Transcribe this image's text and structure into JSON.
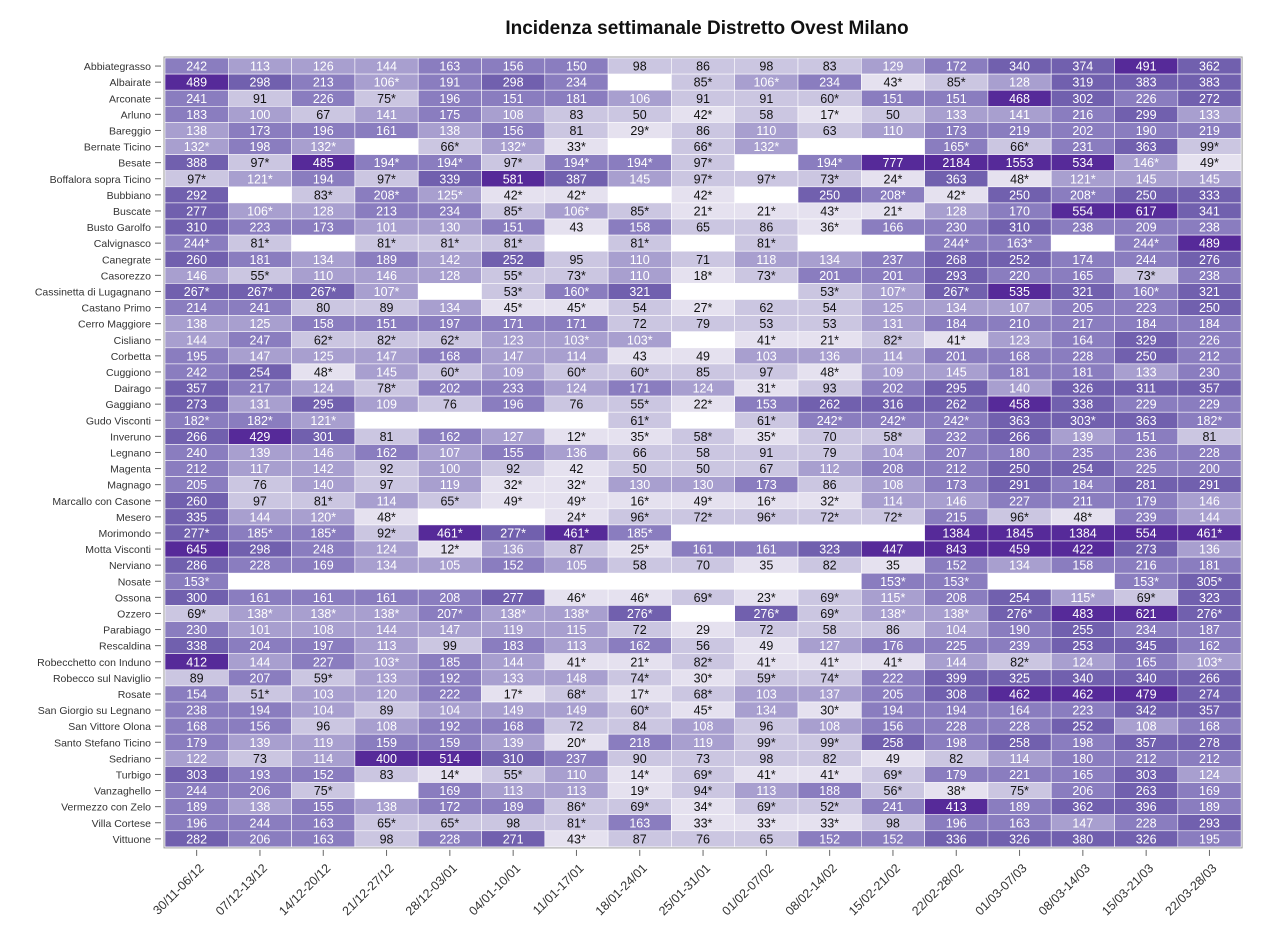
{
  "chart_data": {
    "type": "heatmap",
    "title": "Incidenza settimanale Distretto Ovest Milano",
    "columns": [
      "30/11-06/12",
      "07/12-13/12",
      "14/12-20/12",
      "21/12-27/12",
      "28/12-03/01",
      "04/01-10/01",
      "11/01-17/01",
      "18/01-24/01",
      "25/01-31/01",
      "01/02-07/02",
      "08/02-14/02",
      "15/02-21/02",
      "22/02-28/02",
      "01/03-07/03",
      "08/03-14/03",
      "15/03-21/03",
      "22/03-28/03"
    ],
    "rows": [
      "Abbiategrasso",
      "Albairate",
      "Arconate",
      "Arluno",
      "Bareggio",
      "Bernate Ticino",
      "Besate",
      "Boffalora sopra Ticino",
      "Bubbiano",
      "Buscate",
      "Busto Garolfo",
      "Calvignasco",
      "Canegrate",
      "Casorezzo",
      "Cassinetta di Lugagnano",
      "Castano Primo",
      "Cerro Maggiore",
      "Cisliano",
      "Corbetta",
      "Cuggiono",
      "Dairago",
      "Gaggiano",
      "Gudo Visconti",
      "Inveruno",
      "Legnano",
      "Magenta",
      "Magnago",
      "Marcallo con Casone",
      "Mesero",
      "Morimondo",
      "Motta Visconti",
      "Nerviano",
      "Nosate",
      "Ossona",
      "Ozzero",
      "Parabiago",
      "Rescaldina",
      "Robecchetto con Induno",
      "Robecco sul Naviglio",
      "Rosate",
      "San Giorgio su Legnano",
      "San Vittore Olona",
      "Santo Stefano Ticino",
      "Sedriano",
      "Turbigo",
      "Vanzaghello",
      "Vermezzo con Zelo",
      "Villa Cortese",
      "Vittuone"
    ],
    "values": [
      [
        "242",
        "113",
        "126",
        "144",
        "163",
        "156",
        "150",
        "98",
        "86",
        "98",
        "83",
        "129",
        "172",
        "340",
        "374",
        "491",
        "362"
      ],
      [
        "489",
        "298",
        "213",
        "106*",
        "191",
        "298",
        "234",
        "",
        "85*",
        "106*",
        "234",
        "43*",
        "85*",
        "128",
        "319",
        "383",
        "383"
      ],
      [
        "241",
        "91",
        "226",
        "75*",
        "196",
        "151",
        "181",
        "106",
        "91",
        "91",
        "60*",
        "151",
        "151",
        "468",
        "302",
        "226",
        "272"
      ],
      [
        "183",
        "100",
        "67",
        "141",
        "175",
        "108",
        "83",
        "50",
        "42*",
        "58",
        "17*",
        "50",
        "133",
        "141",
        "216",
        "299",
        "133"
      ],
      [
        "138",
        "173",
        "196",
        "161",
        "138",
        "156",
        "81",
        "29*",
        "86",
        "110",
        "63",
        "110",
        "173",
        "219",
        "202",
        "190",
        "219"
      ],
      [
        "132*",
        "198",
        "132*",
        "",
        "66*",
        "132*",
        "33*",
        "",
        "66*",
        "132*",
        "",
        "",
        "165*",
        "66*",
        "231",
        "363",
        "99*"
      ],
      [
        "388",
        "97*",
        "485",
        "194*",
        "194*",
        "97*",
        "194*",
        "194*",
        "97*",
        "",
        "194*",
        "777",
        "2184",
        "1553",
        "534",
        "146*",
        "49*"
      ],
      [
        "97*",
        "121*",
        "194",
        "97*",
        "339",
        "581",
        "387",
        "145",
        "97*",
        "97*",
        "73*",
        "24*",
        "363",
        "48*",
        "121*",
        "145",
        "145"
      ],
      [
        "292",
        "",
        "83*",
        "208*",
        "125*",
        "42*",
        "42*",
        "",
        "42*",
        "",
        "250",
        "208*",
        "42*",
        "250",
        "208*",
        "250",
        "333"
      ],
      [
        "277",
        "106*",
        "128",
        "213",
        "234",
        "85*",
        "106*",
        "85*",
        "21*",
        "21*",
        "43*",
        "21*",
        "128",
        "170",
        "554",
        "617",
        "341"
      ],
      [
        "310",
        "223",
        "173",
        "101",
        "130",
        "151",
        "43",
        "158",
        "65",
        "86",
        "36*",
        "166",
        "230",
        "310",
        "238",
        "209",
        "238"
      ],
      [
        "244*",
        "81*",
        "",
        "81*",
        "81*",
        "81*",
        "",
        "81*",
        "",
        "81*",
        "",
        "",
        "244*",
        "163*",
        "",
        "244*",
        "489"
      ],
      [
        "260",
        "181",
        "134",
        "189",
        "142",
        "252",
        "95",
        "110",
        "71",
        "118",
        "134",
        "237",
        "268",
        "252",
        "174",
        "244",
        "276"
      ],
      [
        "146",
        "55*",
        "110",
        "146",
        "128",
        "55*",
        "73*",
        "110",
        "18*",
        "73*",
        "201",
        "201",
        "293",
        "220",
        "165",
        "73*",
        "238"
      ],
      [
        "267*",
        "267*",
        "267*",
        "107*",
        "",
        "53*",
        "160*",
        "321",
        "",
        "",
        "53*",
        "107*",
        "267*",
        "535",
        "321",
        "160*",
        "321"
      ],
      [
        "214",
        "241",
        "80",
        "89",
        "134",
        "45*",
        "45*",
        "54",
        "27*",
        "62",
        "54",
        "125",
        "134",
        "107",
        "205",
        "223",
        "250"
      ],
      [
        "138",
        "125",
        "158",
        "151",
        "197",
        "171",
        "171",
        "72",
        "79",
        "53",
        "53",
        "131",
        "184",
        "210",
        "217",
        "184",
        "184"
      ],
      [
        "144",
        "247",
        "62*",
        "82*",
        "62*",
        "123",
        "103*",
        "103*",
        "",
        "41*",
        "21*",
        "82*",
        "41*",
        "123",
        "164",
        "329",
        "226"
      ],
      [
        "195",
        "147",
        "125",
        "147",
        "168",
        "147",
        "114",
        "43",
        "49",
        "103",
        "136",
        "114",
        "201",
        "168",
        "228",
        "250",
        "212"
      ],
      [
        "242",
        "254",
        "48*",
        "145",
        "60*",
        "109",
        "60*",
        "60*",
        "85",
        "97",
        "48*",
        "109",
        "145",
        "181",
        "181",
        "133",
        "230"
      ],
      [
        "357",
        "217",
        "124",
        "78*",
        "202",
        "233",
        "124",
        "171",
        "124",
        "31*",
        "93",
        "202",
        "295",
        "140",
        "326",
        "311",
        "357"
      ],
      [
        "273",
        "131",
        "295",
        "109",
        "76",
        "196",
        "76",
        "55*",
        "22*",
        "153",
        "262",
        "316",
        "262",
        "458",
        "338",
        "229",
        "229"
      ],
      [
        "182*",
        "182*",
        "121*",
        "",
        "",
        "",
        "",
        "61*",
        "",
        "61*",
        "242*",
        "242*",
        "242*",
        "363",
        "303*",
        "363",
        "182*"
      ],
      [
        "266",
        "429",
        "301",
        "81",
        "162",
        "127",
        "12*",
        "35*",
        "58*",
        "35*",
        "70",
        "58*",
        "232",
        "266",
        "139",
        "151",
        "81"
      ],
      [
        "240",
        "139",
        "146",
        "162",
        "107",
        "155",
        "136",
        "66",
        "58",
        "91",
        "79",
        "104",
        "207",
        "180",
        "235",
        "236",
        "228"
      ],
      [
        "212",
        "117",
        "142",
        "92",
        "100",
        "92",
        "42",
        "50",
        "50",
        "67",
        "112",
        "208",
        "212",
        "250",
        "254",
        "225",
        "200"
      ],
      [
        "205",
        "76",
        "140",
        "97",
        "119",
        "32*",
        "32*",
        "130",
        "130",
        "173",
        "86",
        "108",
        "173",
        "291",
        "184",
        "281",
        "291"
      ],
      [
        "260",
        "97",
        "81*",
        "114",
        "65*",
        "49*",
        "49*",
        "16*",
        "49*",
        "16*",
        "32*",
        "114",
        "146",
        "227",
        "211",
        "179",
        "146"
      ],
      [
        "335",
        "144",
        "120*",
        "48*",
        "",
        "",
        "24*",
        "96*",
        "72*",
        "96*",
        "72*",
        "72*",
        "215",
        "96*",
        "48*",
        "239",
        "144"
      ],
      [
        "277*",
        "185*",
        "185*",
        "92*",
        "461*",
        "277*",
        "461*",
        "185*",
        "",
        "",
        "",
        "",
        "1384",
        "1845",
        "1384",
        "554",
        "461*"
      ],
      [
        "645",
        "298",
        "248",
        "124",
        "12*",
        "136",
        "87",
        "25*",
        "161",
        "161",
        "323",
        "447",
        "843",
        "459",
        "422",
        "273",
        "136"
      ],
      [
        "286",
        "228",
        "169",
        "134",
        "105",
        "152",
        "105",
        "58",
        "70",
        "35",
        "82",
        "35",
        "152",
        "134",
        "158",
        "216",
        "181"
      ],
      [
        "153*",
        "",
        "",
        "",
        "",
        "",
        "",
        "",
        "",
        "",
        "",
        "153*",
        "153*",
        "",
        "",
        "153*",
        "305*"
      ],
      [
        "300",
        "161",
        "161",
        "161",
        "208",
        "277",
        "46*",
        "46*",
        "69*",
        "23*",
        "69*",
        "115*",
        "208",
        "254",
        "115*",
        "69*",
        "323"
      ],
      [
        "69*",
        "138*",
        "138*",
        "138*",
        "207*",
        "138*",
        "138*",
        "276*",
        "",
        "276*",
        "69*",
        "138*",
        "138*",
        "276*",
        "483",
        "621",
        "276*"
      ],
      [
        "230",
        "101",
        "108",
        "144",
        "147",
        "119",
        "115",
        "72",
        "29",
        "72",
        "58",
        "86",
        "104",
        "190",
        "255",
        "234",
        "187"
      ],
      [
        "338",
        "204",
        "197",
        "113",
        "99",
        "183",
        "113",
        "162",
        "56",
        "49",
        "127",
        "176",
        "225",
        "239",
        "253",
        "345",
        "162"
      ],
      [
        "412",
        "144",
        "227",
        "103*",
        "185",
        "144",
        "41*",
        "21*",
        "82*",
        "41*",
        "41*",
        "41*",
        "144",
        "82*",
        "124",
        "165",
        "103*"
      ],
      [
        "89",
        "207",
        "59*",
        "133",
        "192",
        "133",
        "148",
        "74*",
        "30*",
        "59*",
        "74*",
        "222",
        "399",
        "325",
        "340",
        "340",
        "266"
      ],
      [
        "154",
        "51*",
        "103",
        "120",
        "222",
        "17*",
        "68*",
        "17*",
        "68*",
        "103",
        "137",
        "205",
        "308",
        "462",
        "462",
        "479",
        "274"
      ],
      [
        "238",
        "194",
        "104",
        "89",
        "104",
        "149",
        "149",
        "60*",
        "45*",
        "134",
        "30*",
        "194",
        "194",
        "164",
        "223",
        "342",
        "357"
      ],
      [
        "168",
        "156",
        "96",
        "108",
        "192",
        "168",
        "72",
        "84",
        "108",
        "96",
        "108",
        "156",
        "228",
        "228",
        "252",
        "108",
        "168"
      ],
      [
        "179",
        "139",
        "119",
        "159",
        "159",
        "139",
        "20*",
        "218",
        "119",
        "99*",
        "99*",
        "258",
        "198",
        "258",
        "198",
        "357",
        "278"
      ],
      [
        "122",
        "73",
        "114",
        "400",
        "514",
        "310",
        "237",
        "90",
        "73",
        "98",
        "82",
        "49",
        "82",
        "114",
        "180",
        "212",
        "212"
      ],
      [
        "303",
        "193",
        "152",
        "83",
        "14*",
        "55*",
        "110",
        "14*",
        "69*",
        "41*",
        "41*",
        "69*",
        "179",
        "221",
        "165",
        "303",
        "124"
      ],
      [
        "244",
        "206",
        "75*",
        "",
        "169",
        "113",
        "113",
        "19*",
        "94*",
        "113",
        "188",
        "56*",
        "38*",
        "75*",
        "206",
        "263",
        "169"
      ],
      [
        "189",
        "138",
        "155",
        "138",
        "172",
        "189",
        "86*",
        "69*",
        "34*",
        "69*",
        "52*",
        "241",
        "413",
        "189",
        "362",
        "396",
        "189"
      ],
      [
        "196",
        "244",
        "163",
        "65*",
        "65*",
        "98",
        "81*",
        "163",
        "33*",
        "33*",
        "33*",
        "98",
        "196",
        "163",
        "147",
        "228",
        "293"
      ],
      [
        "282",
        "206",
        "163",
        "98",
        "228",
        "271",
        "43*",
        "87",
        "76",
        "65",
        "152",
        "152",
        "336",
        "326",
        "380",
        "326",
        "195"
      ]
    ],
    "color_scale": [
      "#ffffff",
      "#e5e1ef",
      "#cbc6e1",
      "#a89fcf",
      "#8a7dbf",
      "#7160ae",
      "#562a99"
    ],
    "legend": "none",
    "grid": true
  }
}
